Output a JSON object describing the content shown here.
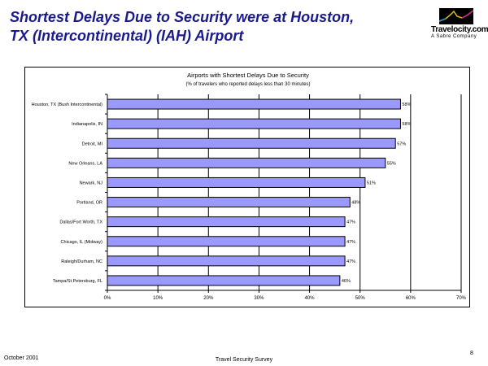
{
  "slide": {
    "title": "Shortest Delays Due to Security were at Houston, TX (Intercontinental) (IAH) Airport",
    "logo_text": "Travelocity.com",
    "logo_subtext": "A Sabre Company",
    "footer_left": "October 2001",
    "footer_center": "Travel Security Survey",
    "page_number": "8"
  },
  "chart_data": {
    "type": "bar",
    "orientation": "horizontal",
    "title": "Airports with Shortest Delays Due to Security",
    "subtitle": "(% of travelers who reported delays less than 30 minutes)",
    "categories": [
      "Houston, TX (Bush Intercontinental)",
      "Indianapolis, IN",
      "Detroit, MI",
      "New Orleans, LA",
      "Newark, NJ",
      "Portland, OR",
      "Dallas/Fort Worth, TX",
      "Chicago, IL (Midway)",
      "Raleigh/Durham, NC",
      "Tampa/St Petersburg, FL"
    ],
    "values": [
      58,
      58,
      57,
      55,
      51,
      48,
      47,
      47,
      47,
      46
    ],
    "data_labels": [
      "58%",
      "58%",
      "57%",
      "55%",
      "51%",
      "48%",
      "47%",
      "47%",
      "47%",
      "46%"
    ],
    "xlim": [
      0,
      70
    ],
    "xticks": [
      "0%",
      "10%",
      "20%",
      "30%",
      "40%",
      "50%",
      "60%",
      "70%"
    ],
    "grid": true,
    "bar_color": "#9999ff"
  }
}
